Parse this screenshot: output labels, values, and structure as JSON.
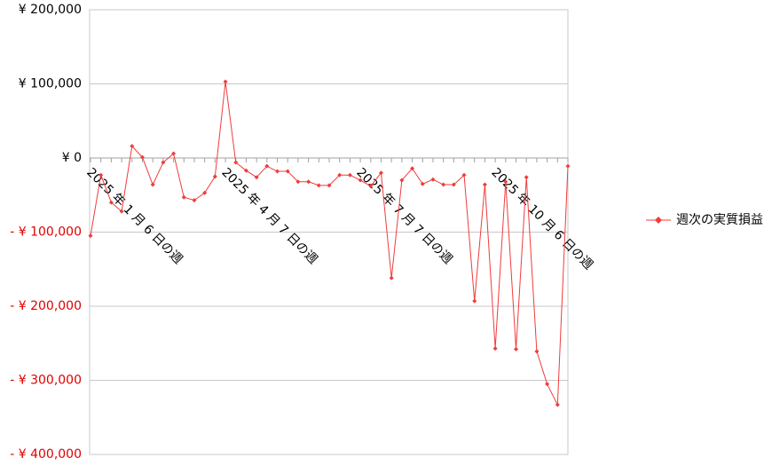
{
  "chart_data": {
    "type": "line",
    "categories": [
      "2025 年 1 月 6 日の週",
      null,
      null,
      null,
      null,
      null,
      null,
      null,
      null,
      null,
      null,
      null,
      null,
      "2025 年 4 月 7 日の週",
      null,
      null,
      null,
      null,
      null,
      null,
      null,
      null,
      null,
      null,
      null,
      null,
      "2025 年 7 月 7 日の週",
      null,
      null,
      null,
      null,
      null,
      null,
      null,
      null,
      null,
      null,
      null,
      null,
      "2025 年 10 月 6 日の週",
      null,
      null,
      null,
      null,
      null,
      null,
      null
    ],
    "series": [
      {
        "name": "週次の実質損益",
        "color": "#f03c3c",
        "values": [
          -105000,
          -23000,
          -60000,
          -72000,
          16000,
          1000,
          -36000,
          -6000,
          6000,
          -53000,
          -57000,
          -47000,
          -25000,
          103000,
          -6000,
          -17000,
          -26000,
          -11000,
          -18000,
          -18000,
          -32000,
          -32000,
          -37000,
          -37000,
          -23000,
          -23000,
          -30000,
          -38000,
          -20000,
          -162000,
          -30000,
          -14000,
          -35000,
          -29000,
          -36000,
          -36000,
          -23000,
          -193000,
          -36000,
          -257000,
          -32000,
          -258000,
          -26000,
          -261000,
          -305000,
          -333000,
          -11000
        ]
      }
    ],
    "ylim": [
      -400000,
      200000
    ],
    "yticks": [
      {
        "value": -400000,
        "label": "- ¥ 400,000"
      },
      {
        "value": -300000,
        "label": "- ¥ 300,000"
      },
      {
        "value": -200000,
        "label": "- ¥ 200,000"
      },
      {
        "value": -100000,
        "label": "- ¥ 100,000"
      },
      {
        "value": 0,
        "label": "¥ 0"
      },
      {
        "value": 100000,
        "label": "¥ 100,000"
      },
      {
        "value": 200000,
        "label": "¥ 200,000"
      }
    ],
    "negative_tick_color": "#e00000",
    "grid": true,
    "legend": "right"
  }
}
